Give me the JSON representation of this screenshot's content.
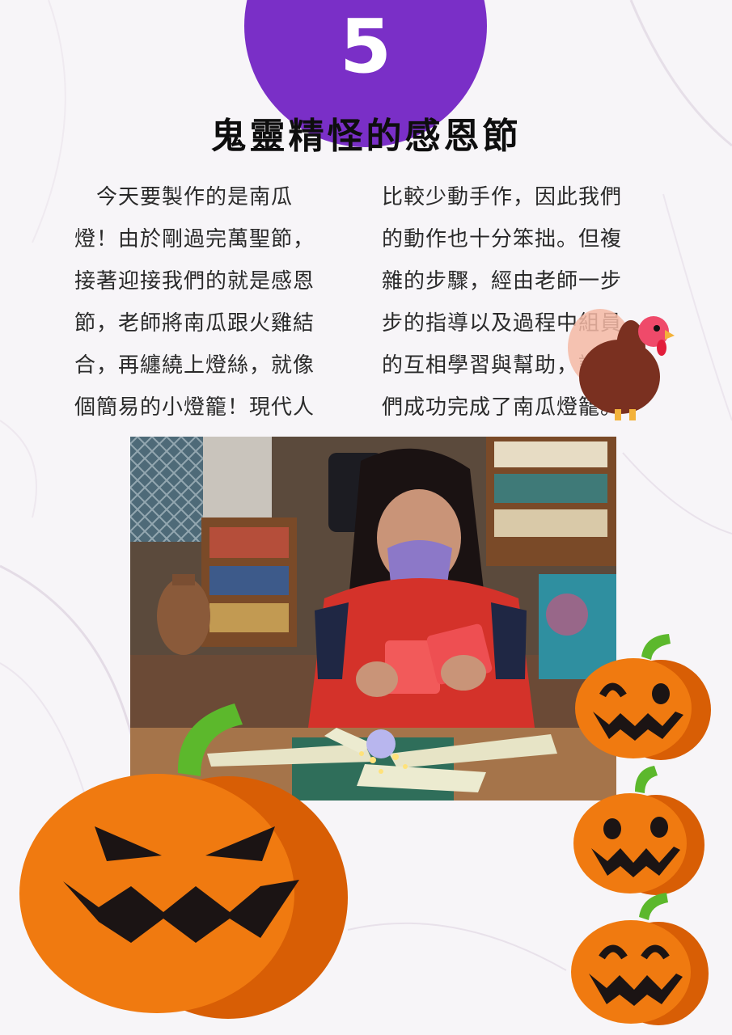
{
  "page": {
    "number": "5",
    "title": "鬼靈精怪的感恩節"
  },
  "article": {
    "left_lines": [
      "　今天要製作的是南瓜",
      "燈！由於剛過完萬聖節，",
      "接著迎接我們的就是感恩",
      "節，老師將南瓜跟火雞結",
      "合，再纏繞上燈絲，就像",
      "個簡易的小燈籠！現代人"
    ],
    "right_lines": [
      "比較少動手作，因此我們",
      "的動作也十分笨拙。但複",
      "雜的步驟，經由老師一步",
      "步的指導以及過程中組員",
      "的互相學習與幫助，讓我",
      "們成功完成了南瓜燈籠。"
    ]
  },
  "colors": {
    "badge": "#7a2fc7",
    "pumpkin": "#f07a10",
    "pumpkin_shade": "#d85e05",
    "stem": "#5cb82c",
    "text": "#2a2a2a"
  }
}
